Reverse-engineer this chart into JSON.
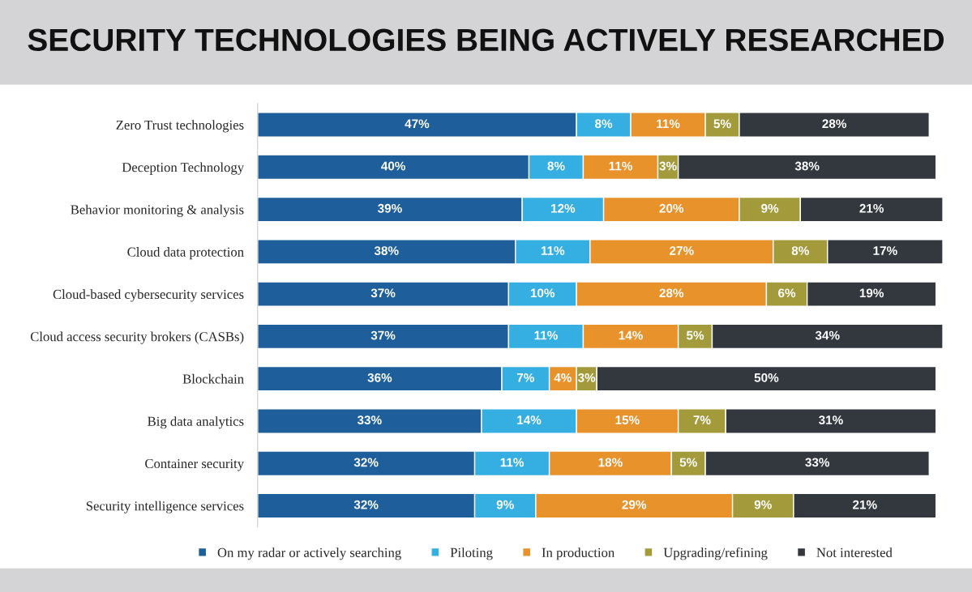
{
  "chart_data": {
    "type": "bar",
    "orientation": "horizontal",
    "stacked": true,
    "title": "SECURITY TECHNOLOGIES BEING ACTIVELY RESEARCHED",
    "tick_labels": "y",
    "legend": "bottom",
    "grid": false,
    "categories": [
      "Zero Trust technologies",
      "Deception Technology",
      "Behavior monitoring & analysis",
      "Cloud data protection",
      "Cloud-based cybersecurity services",
      "Cloud access security brokers (CASBs)",
      "Blockchain",
      "Big data analytics",
      "Container security",
      "Security intelligence services"
    ],
    "series": [
      {
        "name": "On my radar or actively searching",
        "color": "#1e5f9b",
        "values": [
          47,
          40,
          39,
          38,
          37,
          37,
          36,
          33,
          32,
          32
        ],
        "value_labels": [
          "47%",
          "40%",
          "39%",
          "38%",
          "37%",
          "37%",
          "36%",
          "33%",
          "32%",
          "32%"
        ]
      },
      {
        "name": "Piloting",
        "color": "#35aee2",
        "values": [
          8,
          8,
          12,
          11,
          10,
          11,
          7,
          14,
          11,
          9
        ],
        "value_labels": [
          "8%",
          "8%",
          "12%",
          "11%",
          "10%",
          "11%",
          "7%",
          "14%",
          "11%",
          "9%"
        ]
      },
      {
        "name": "In production",
        "color": "#e8922b",
        "values": [
          11,
          11,
          20,
          27,
          28,
          14,
          4,
          15,
          18,
          29
        ],
        "value_labels": [
          "11%",
          "11%",
          "20%",
          "27%",
          "28%",
          "14%",
          "4%",
          "15%",
          "18%",
          "29%"
        ]
      },
      {
        "name": "Upgrading/refining",
        "color": "#a39b3b",
        "values": [
          5,
          3,
          9,
          8,
          6,
          5,
          3,
          7,
          5,
          9
        ],
        "value_labels": [
          "5%",
          "3%",
          "9%",
          "8%",
          "6%",
          "5%",
          "3%",
          "7%",
          "5%",
          "9%"
        ]
      },
      {
        "name": "Not interested",
        "color": "#33383e",
        "values": [
          28,
          38,
          21,
          17,
          19,
          34,
          50,
          31,
          33,
          21
        ],
        "value_labels": [
          "28%",
          "38%",
          "21%",
          "17%",
          "19%",
          "34%",
          "50%",
          "31%",
          "33%",
          "21%"
        ]
      }
    ]
  }
}
